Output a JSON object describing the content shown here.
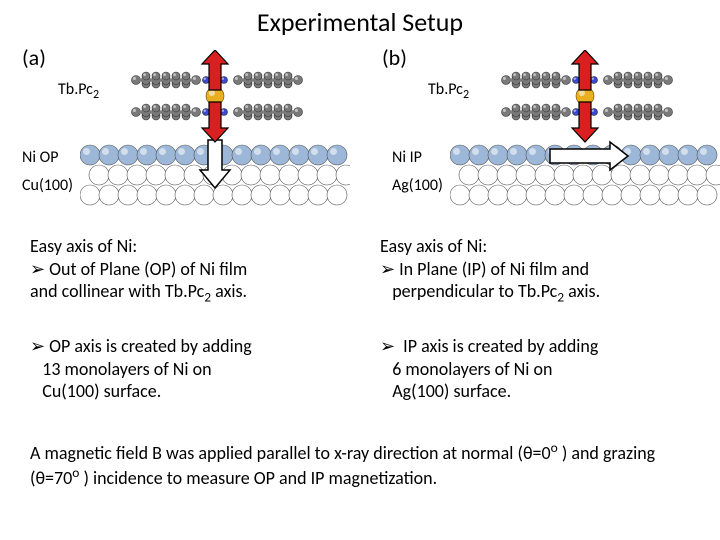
{
  "title": "Experimental Setup",
  "panels": {
    "a": {
      "label": "(a)",
      "molecule": "Tb.Pc",
      "molecule_sub": "2",
      "ni_label": "Ni OP",
      "substrate": "Cu(100)",
      "arrow_color": "#d92020",
      "arrow_outline": "#000000",
      "ni_arrow_mode": "vertical",
      "tb_color": "#e8b020",
      "atom_small_color": "#7a7a7a",
      "ni_row_color": "#9db7d8",
      "sub_row_color": "#ffffff",
      "atom_outline": "#555555"
    },
    "b": {
      "label": "(b)",
      "molecule": "Tb.Pc",
      "molecule_sub": "2",
      "ni_label": "Ni IP",
      "substrate": "Ag(100)",
      "arrow_color": "#d92020",
      "arrow_outline": "#000000",
      "ni_arrow_mode": "horizontal",
      "tb_color": "#e8b020",
      "atom_small_color": "#7a7a7a",
      "ni_row_color": "#9db7d8",
      "sub_row_color": "#ffffff",
      "atom_outline": "#555555"
    }
  },
  "text": {
    "a1_l1": "Easy axis of Ni:",
    "a1_l2a": "Out of Plane (OP) of Ni film",
    "a1_l2b": "and collinear with Tb.Pc",
    "a1_l2sub": "2",
    "a1_l2c": " axis.",
    "b1_l1": "Easy axis of Ni:",
    "b1_l2a": "In Plane (IP) of Ni film and",
    "b1_l2b": "perpendicular to Tb.Pc",
    "b1_l2sub": "2",
    "b1_l2c": " axis.",
    "a2_l1": "OP axis is created by adding",
    "a2_l2": "13 monolayers of Ni on",
    "a2_l3": "Cu(100) surface.",
    "b2_l1": " IP axis is created by adding",
    "b2_l2": "6 monolayers of Ni on",
    "b2_l3": "Ag(100) surface.",
    "footer_a": "A magnetic field B was applied parallel to x-ray direction at normal (θ=0",
    "footer_deg": "o",
    "footer_b": " ) and grazing (θ=70",
    "footer_c": " ) incidence to measure OP and IP magnetization."
  },
  "style": {
    "title_fontsize": 26,
    "label_fontsize": 22,
    "small_fontsize": 16,
    "body_fontsize": 18,
    "background": "#ffffff",
    "text_color": "#000000"
  }
}
